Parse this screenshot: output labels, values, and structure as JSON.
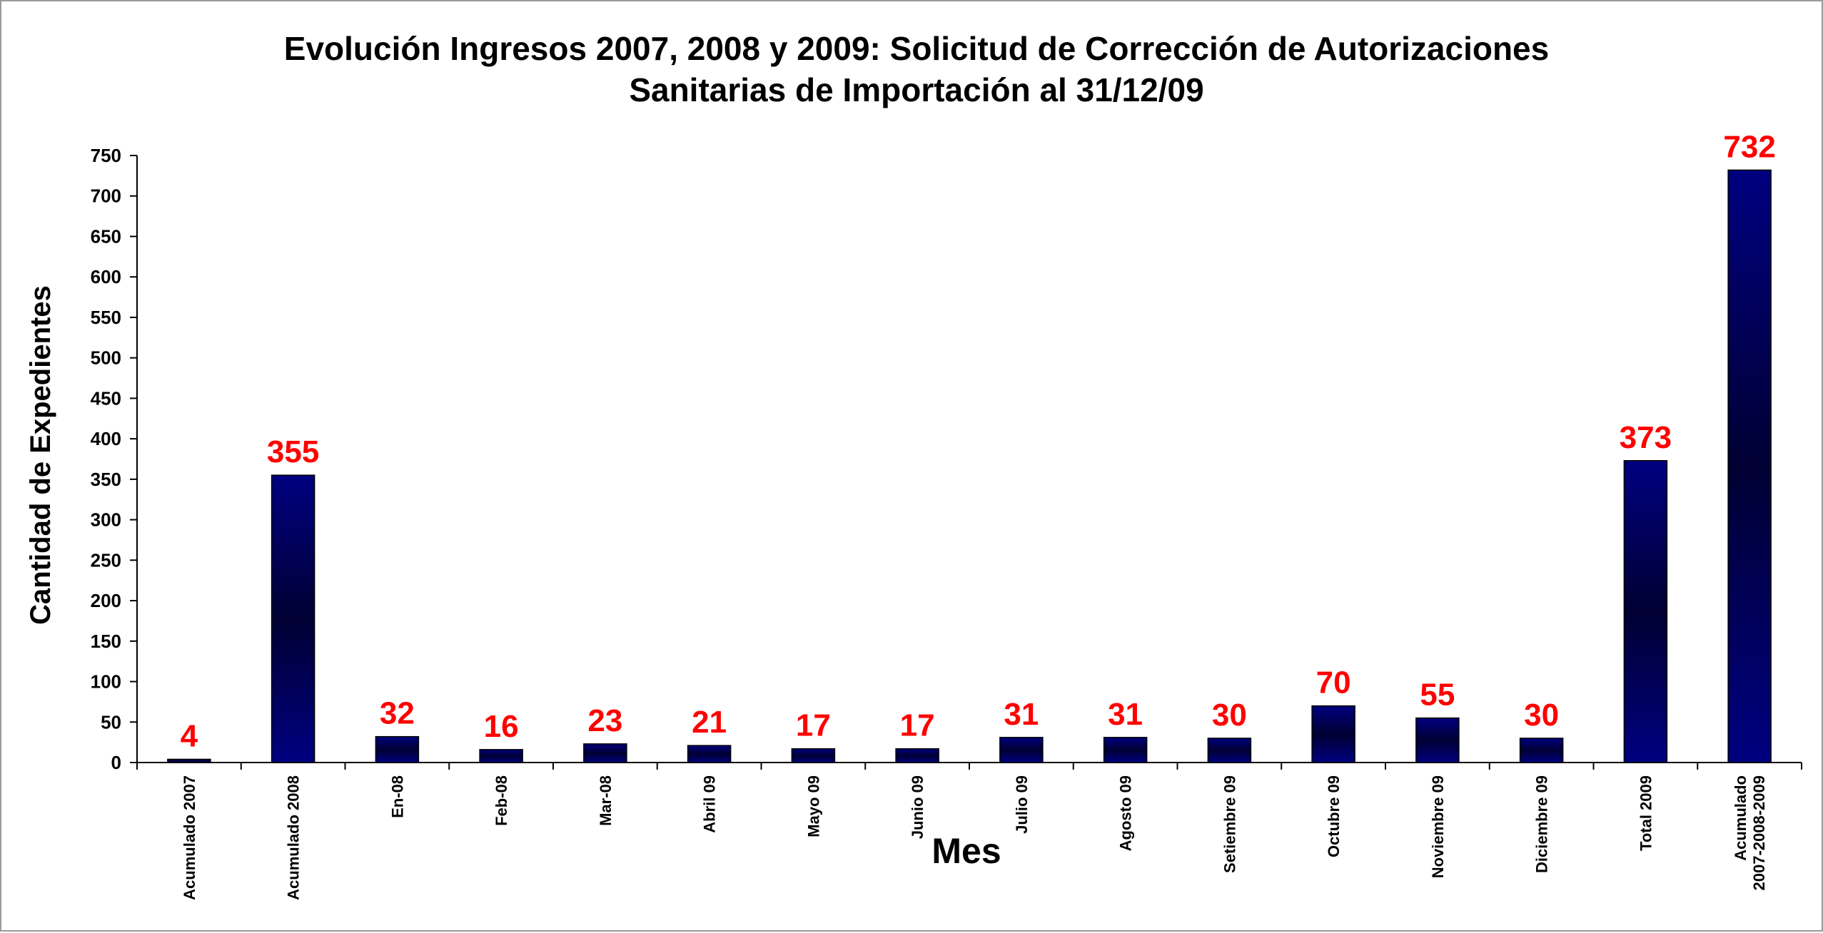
{
  "chart_data": {
    "type": "bar",
    "title_lines": [
      "Evolución Ingresos 2007, 2008 y 2009: Solicitud de Corrección de Autorizaciones",
      "Sanitarias de Importación  al 31/12/09"
    ],
    "xlabel": "Mes",
    "ylabel": "Cantidad de Expedientes",
    "ylim": [
      0,
      750
    ],
    "yticks": [
      0,
      50,
      100,
      150,
      200,
      250,
      300,
      350,
      400,
      450,
      500,
      550,
      600,
      650,
      700,
      750
    ],
    "categories": [
      [
        "Acumulado 2007"
      ],
      [
        "Acumulado 2008"
      ],
      [
        "En-08"
      ],
      [
        "Feb-08"
      ],
      [
        "Mar-08"
      ],
      [
        "Abril 09"
      ],
      [
        "Mayo 09"
      ],
      [
        "Junio 09"
      ],
      [
        "Julio 09"
      ],
      [
        "Agosto 09"
      ],
      [
        "Setiembre 09"
      ],
      [
        "Octubre 09"
      ],
      [
        "Noviembre 09"
      ],
      [
        "Diciembre 09"
      ],
      [
        "Total 2009"
      ],
      [
        "Acumulado",
        "2007-2008-2009"
      ]
    ],
    "values": [
      4,
      355,
      32,
      16,
      23,
      21,
      17,
      17,
      31,
      31,
      30,
      70,
      55,
      30,
      373,
      732
    ],
    "data_labels": true,
    "grid": false,
    "legend": "none",
    "colors": {
      "bar_dark": "#000033",
      "bar_light": "#000080",
      "label": "#ff0000"
    }
  }
}
